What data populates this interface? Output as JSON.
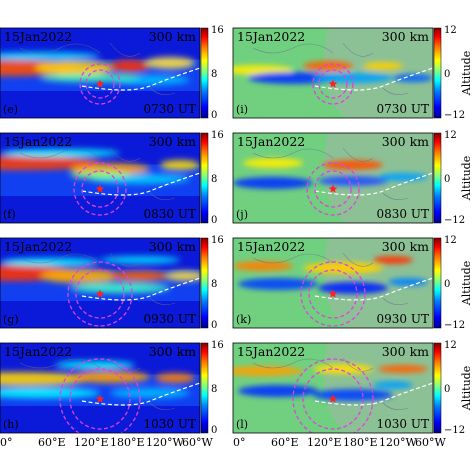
{
  "chart_data": {
    "type": "heatmap",
    "panels": [
      {
        "label": "(e)",
        "date": "15Jan2022",
        "altitude": "300 km",
        "time": "0730 UT",
        "column": "left",
        "row": 0
      },
      {
        "label": "(i)",
        "date": "15Jan2022",
        "altitude": "300 km",
        "time": "0730 UT",
        "column": "right",
        "row": 0
      },
      {
        "label": "(f)",
        "date": "15Jan2022",
        "altitude": "300 km",
        "time": "0830 UT",
        "column": "left",
        "row": 1
      },
      {
        "label": "(j)",
        "date": "15Jan2022",
        "altitude": "300 km",
        "time": "0830 UT",
        "column": "right",
        "row": 1
      },
      {
        "label": "(g)",
        "date": "15Jan2022",
        "altitude": "300 km",
        "time": "0930 UT",
        "column": "left",
        "row": 2
      },
      {
        "label": "(k)",
        "date": "15Jan2022",
        "altitude": "300 km",
        "time": "0930 UT",
        "column": "right",
        "row": 2
      },
      {
        "label": "(h)",
        "date": "15Jan2022",
        "altitude": "300 km",
        "time": "1030 UT",
        "column": "left",
        "row": 3
      },
      {
        "label": "(l)",
        "date": "15Jan2022",
        "altitude": "300 km",
        "time": "1030 UT",
        "column": "right",
        "row": 3
      }
    ],
    "xticks": [
      "0°",
      "60°E",
      "120°E",
      "180°E",
      "120°W",
      "60°W"
    ],
    "left_colorbar": {
      "min": 0,
      "max": 16,
      "ticks": [
        "16",
        "8",
        "0"
      ]
    },
    "right_colorbar": {
      "min": -12,
      "max": 12,
      "ticks": [
        "12",
        "0",
        "−12"
      ],
      "label": "Altitude"
    },
    "colormap": [
      "#00008f",
      "#0000ff",
      "#0080ff",
      "#00ffff",
      "#80ff80",
      "#ffff00",
      "#ff8000",
      "#ff0000",
      "#800000"
    ],
    "markers": {
      "epicenter_color": "#ff2020",
      "ring_color": "#e040e0",
      "terminator_color": "#ffffff"
    }
  }
}
